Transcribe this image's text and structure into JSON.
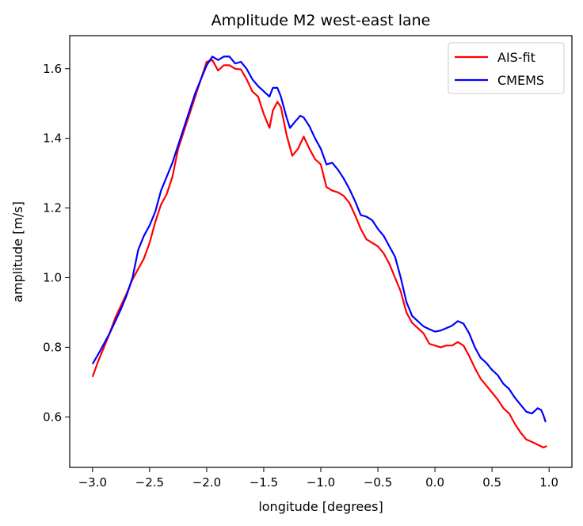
{
  "chart_data": {
    "type": "line",
    "title": "Amplitude M2 west-east lane",
    "xlabel": "longitude [degrees]",
    "ylabel": "amplitude [m/s]",
    "xlim": [
      -3.2,
      1.2
    ],
    "ylim": [
      0.455,
      1.695
    ],
    "xticks": [
      -3.0,
      -2.5,
      -2.0,
      -1.5,
      -1.0,
      -0.5,
      0.0,
      0.5,
      1.0
    ],
    "xtick_labels": [
      "−3.0",
      "−2.5",
      "−2.0",
      "−1.5",
      "−1.0",
      "−0.5",
      "0.0",
      "0.5",
      "1.0"
    ],
    "yticks": [
      0.6,
      0.8,
      1.0,
      1.2,
      1.4,
      1.6
    ],
    "ytick_labels": [
      "0.6",
      "0.8",
      "1.0",
      "1.2",
      "1.4",
      "1.6"
    ],
    "grid": false,
    "legend_position": "top-right",
    "series": [
      {
        "name": "AIS-fit",
        "color": "#ff0000",
        "points": [
          [
            -3.0,
            0.715
          ],
          [
            -2.95,
            0.76
          ],
          [
            -2.9,
            0.8
          ],
          [
            -2.85,
            0.84
          ],
          [
            -2.8,
            0.885
          ],
          [
            -2.75,
            0.92
          ],
          [
            -2.7,
            0.955
          ],
          [
            -2.65,
            0.995
          ],
          [
            -2.6,
            1.025
          ],
          [
            -2.55,
            1.055
          ],
          [
            -2.5,
            1.1
          ],
          [
            -2.45,
            1.16
          ],
          [
            -2.4,
            1.21
          ],
          [
            -2.35,
            1.24
          ],
          [
            -2.3,
            1.29
          ],
          [
            -2.25,
            1.37
          ],
          [
            -2.2,
            1.42
          ],
          [
            -2.15,
            1.47
          ],
          [
            -2.1,
            1.52
          ],
          [
            -2.05,
            1.57
          ],
          [
            -2.0,
            1.62
          ],
          [
            -1.95,
            1.625
          ],
          [
            -1.9,
            1.595
          ],
          [
            -1.85,
            1.61
          ],
          [
            -1.8,
            1.61
          ],
          [
            -1.75,
            1.6
          ],
          [
            -1.7,
            1.598
          ],
          [
            -1.65,
            1.57
          ],
          [
            -1.6,
            1.535
          ],
          [
            -1.55,
            1.52
          ],
          [
            -1.5,
            1.47
          ],
          [
            -1.45,
            1.43
          ],
          [
            -1.42,
            1.48
          ],
          [
            -1.38,
            1.505
          ],
          [
            -1.35,
            1.49
          ],
          [
            -1.3,
            1.41
          ],
          [
            -1.25,
            1.35
          ],
          [
            -1.2,
            1.37
          ],
          [
            -1.15,
            1.405
          ],
          [
            -1.1,
            1.37
          ],
          [
            -1.05,
            1.34
          ],
          [
            -1.0,
            1.325
          ],
          [
            -0.95,
            1.26
          ],
          [
            -0.9,
            1.25
          ],
          [
            -0.85,
            1.245
          ],
          [
            -0.8,
            1.235
          ],
          [
            -0.75,
            1.215
          ],
          [
            -0.7,
            1.18
          ],
          [
            -0.65,
            1.14
          ],
          [
            -0.6,
            1.11
          ],
          [
            -0.55,
            1.1
          ],
          [
            -0.5,
            1.09
          ],
          [
            -0.45,
            1.07
          ],
          [
            -0.4,
            1.04
          ],
          [
            -0.35,
            1.0
          ],
          [
            -0.3,
            0.96
          ],
          [
            -0.25,
            0.9
          ],
          [
            -0.2,
            0.87
          ],
          [
            -0.15,
            0.855
          ],
          [
            -0.1,
            0.84
          ],
          [
            -0.05,
            0.81
          ],
          [
            0.0,
            0.805
          ],
          [
            0.05,
            0.8
          ],
          [
            0.1,
            0.805
          ],
          [
            0.15,
            0.805
          ],
          [
            0.2,
            0.815
          ],
          [
            0.25,
            0.805
          ],
          [
            0.3,
            0.775
          ],
          [
            0.35,
            0.74
          ],
          [
            0.4,
            0.71
          ],
          [
            0.45,
            0.69
          ],
          [
            0.5,
            0.67
          ],
          [
            0.55,
            0.65
          ],
          [
            0.6,
            0.625
          ],
          [
            0.65,
            0.61
          ],
          [
            0.7,
            0.58
          ],
          [
            0.75,
            0.555
          ],
          [
            0.8,
            0.535
          ],
          [
            0.85,
            0.528
          ],
          [
            0.9,
            0.52
          ],
          [
            0.95,
            0.512
          ],
          [
            0.98,
            0.516
          ]
        ]
      },
      {
        "name": "CMEMS",
        "color": "#0000ff",
        "points": [
          [
            -3.0,
            0.752
          ],
          [
            -2.95,
            0.78
          ],
          [
            -2.9,
            0.81
          ],
          [
            -2.85,
            0.84
          ],
          [
            -2.8,
            0.875
          ],
          [
            -2.75,
            0.91
          ],
          [
            -2.7,
            0.95
          ],
          [
            -2.65,
            1.0
          ],
          [
            -2.6,
            1.08
          ],
          [
            -2.55,
            1.12
          ],
          [
            -2.5,
            1.15
          ],
          [
            -2.45,
            1.19
          ],
          [
            -2.4,
            1.25
          ],
          [
            -2.35,
            1.29
          ],
          [
            -2.3,
            1.33
          ],
          [
            -2.25,
            1.38
          ],
          [
            -2.2,
            1.43
          ],
          [
            -2.15,
            1.48
          ],
          [
            -2.1,
            1.53
          ],
          [
            -2.05,
            1.57
          ],
          [
            -2.0,
            1.61
          ],
          [
            -1.95,
            1.635
          ],
          [
            -1.9,
            1.625
          ],
          [
            -1.85,
            1.635
          ],
          [
            -1.8,
            1.635
          ],
          [
            -1.75,
            1.615
          ],
          [
            -1.7,
            1.62
          ],
          [
            -1.65,
            1.6
          ],
          [
            -1.6,
            1.57
          ],
          [
            -1.55,
            1.55
          ],
          [
            -1.5,
            1.535
          ],
          [
            -1.45,
            1.52
          ],
          [
            -1.42,
            1.545
          ],
          [
            -1.38,
            1.545
          ],
          [
            -1.35,
            1.52
          ],
          [
            -1.3,
            1.46
          ],
          [
            -1.27,
            1.43
          ],
          [
            -1.22,
            1.45
          ],
          [
            -1.18,
            1.465
          ],
          [
            -1.15,
            1.46
          ],
          [
            -1.1,
            1.435
          ],
          [
            -1.05,
            1.4
          ],
          [
            -1.0,
            1.37
          ],
          [
            -0.95,
            1.325
          ],
          [
            -0.9,
            1.33
          ],
          [
            -0.85,
            1.31
          ],
          [
            -0.8,
            1.285
          ],
          [
            -0.75,
            1.255
          ],
          [
            -0.7,
            1.22
          ],
          [
            -0.65,
            1.18
          ],
          [
            -0.6,
            1.175
          ],
          [
            -0.55,
            1.165
          ],
          [
            -0.5,
            1.14
          ],
          [
            -0.45,
            1.12
          ],
          [
            -0.4,
            1.09
          ],
          [
            -0.35,
            1.06
          ],
          [
            -0.3,
            1.0
          ],
          [
            -0.25,
            0.93
          ],
          [
            -0.2,
            0.89
          ],
          [
            -0.15,
            0.875
          ],
          [
            -0.1,
            0.86
          ],
          [
            -0.05,
            0.852
          ],
          [
            0.0,
            0.845
          ],
          [
            0.05,
            0.848
          ],
          [
            0.1,
            0.855
          ],
          [
            0.15,
            0.862
          ],
          [
            0.2,
            0.875
          ],
          [
            0.25,
            0.868
          ],
          [
            0.3,
            0.84
          ],
          [
            0.35,
            0.8
          ],
          [
            0.4,
            0.77
          ],
          [
            0.45,
            0.755
          ],
          [
            0.5,
            0.735
          ],
          [
            0.55,
            0.72
          ],
          [
            0.6,
            0.695
          ],
          [
            0.65,
            0.68
          ],
          [
            0.7,
            0.655
          ],
          [
            0.75,
            0.635
          ],
          [
            0.8,
            0.615
          ],
          [
            0.85,
            0.61
          ],
          [
            0.9,
            0.625
          ],
          [
            0.93,
            0.62
          ],
          [
            0.95,
            0.605
          ],
          [
            0.97,
            0.585
          ]
        ]
      }
    ]
  }
}
